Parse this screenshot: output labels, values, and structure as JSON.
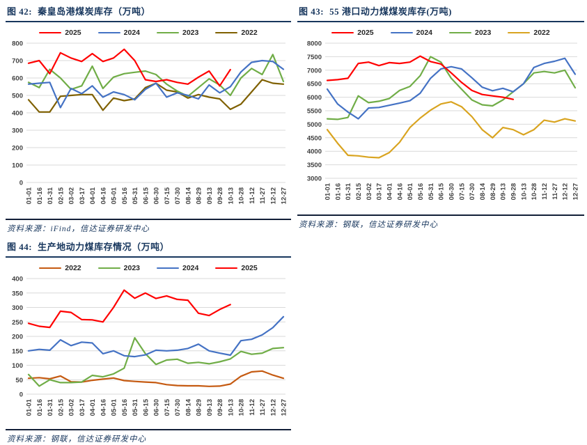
{
  "chart_data": [
    {
      "type": "line",
      "figure_label": "图 42:",
      "title": "秦皇岛港煤炭库存（万吨）",
      "source": "资料来源：iFind，信达证券研发中心",
      "legend_position": "top",
      "grid": true,
      "grid_color": "#D9D9D9",
      "ylim": [
        0,
        800
      ],
      "ytick_step": 100,
      "categories": [
        "01-01",
        "01-16",
        "01-31",
        "02-15",
        "03-02",
        "03-17",
        "04-01",
        "04-16",
        "05-01",
        "05-16",
        "05-31",
        "06-15",
        "06-30",
        "07-15",
        "07-30",
        "08-14",
        "08-29",
        "09-13",
        "09-28",
        "10-13",
        "10-28",
        "11-12",
        "11-27",
        "12-12",
        "12-27"
      ],
      "series": [
        {
          "name": "2025",
          "color": "#FF0000",
          "values": [
            685,
            700,
            625,
            745,
            715,
            695,
            740,
            695,
            715,
            765,
            700,
            590,
            580,
            590,
            575,
            565,
            605,
            640,
            555,
            648,
            null,
            null,
            null,
            null,
            null
          ]
        },
        {
          "name": "2024",
          "color": "#4472C4",
          "values": [
            565,
            570,
            575,
            430,
            540,
            510,
            555,
            490,
            520,
            505,
            475,
            535,
            570,
            490,
            515,
            500,
            480,
            560,
            515,
            550,
            635,
            690,
            700,
            695,
            650
          ]
        },
        {
          "name": "2023",
          "color": "#70AD47",
          "values": [
            575,
            545,
            650,
            600,
            535,
            555,
            668,
            540,
            605,
            625,
            633,
            640,
            620,
            565,
            525,
            495,
            545,
            595,
            560,
            500,
            600,
            655,
            620,
            735,
            580
          ]
        },
        {
          "name": "2022",
          "color": "#7F6000",
          "values": [
            475,
            405,
            405,
            495,
            500,
            505,
            505,
            415,
            485,
            470,
            480,
            545,
            570,
            530,
            520,
            485,
            505,
            490,
            480,
            420,
            450,
            520,
            590,
            570,
            565
          ]
        }
      ]
    },
    {
      "type": "line",
      "figure_label": "图 43:",
      "title": "55 港口动力煤煤炭库存(万吨)",
      "source": "资料来源：钢联，信达证券研发中心",
      "legend_position": "top",
      "grid": true,
      "grid_color": "#D9D9D9",
      "ylim": [
        3000,
        8000
      ],
      "ytick_step": 500,
      "categories": [
        "01-01",
        "01-16",
        "01-31",
        "02-15",
        "03-02",
        "03-17",
        "04-01",
        "04-16",
        "05-01",
        "05-16",
        "05-31",
        "06-15",
        "06-30",
        "07-15",
        "07-30",
        "08-14",
        "08-29",
        "09-13",
        "09-28",
        "10-13",
        "10-28",
        "11-12",
        "11-27",
        "12-12",
        "12-27"
      ],
      "series": [
        {
          "name": "2025",
          "color": "#FF0000",
          "values": [
            6620,
            6650,
            6700,
            7250,
            7300,
            7170,
            7280,
            7250,
            7300,
            7520,
            7320,
            7230,
            6900,
            6550,
            6250,
            6100,
            6050,
            6000,
            5920,
            null,
            null,
            null,
            null,
            null,
            null
          ]
        },
        {
          "name": "2024",
          "color": "#4472C4",
          "values": [
            6300,
            5750,
            5450,
            5200,
            5600,
            5620,
            5700,
            5780,
            5870,
            6150,
            6700,
            7050,
            7130,
            7050,
            6720,
            6370,
            6240,
            6330,
            6200,
            6500,
            7100,
            7250,
            7330,
            7440,
            6850
          ]
        },
        {
          "name": "2023",
          "color": "#70AD47",
          "values": [
            5200,
            5180,
            5250,
            6050,
            5800,
            5850,
            5950,
            6250,
            6400,
            6800,
            7500,
            7300,
            6700,
            6300,
            5900,
            5720,
            5680,
            5900,
            6200,
            6500,
            6900,
            6950,
            6900,
            7000,
            6350
          ]
        },
        {
          "name": "2022",
          "color": "#D9A420",
          "values": [
            4800,
            4300,
            3850,
            3830,
            3780,
            3760,
            3950,
            4330,
            4880,
            5230,
            5520,
            5750,
            5830,
            5650,
            5280,
            4800,
            4500,
            4880,
            4800,
            4610,
            4800,
            5150,
            5080,
            5200,
            5120
          ]
        }
      ]
    },
    {
      "type": "line",
      "figure_label": "图 44:",
      "title": "生产地动力煤库存情况（万吨）",
      "source": "资料来源：钢联，信达证券研发中心",
      "legend_position": "top",
      "grid": true,
      "grid_color": "#D9D9D9",
      "ylim": [
        0,
        400
      ],
      "ytick_step": 50,
      "categories": [
        "01-01",
        "01-16",
        "01-31",
        "02-15",
        "03-02",
        "03-17",
        "04-01",
        "04-16",
        "05-01",
        "05-16",
        "05-31",
        "06-15",
        "06-30",
        "07-15",
        "07-30",
        "08-14",
        "08-29",
        "09-13",
        "09-28",
        "10-13",
        "10-28",
        "11-12",
        "11-27",
        "12-12",
        "12-27"
      ],
      "series": [
        {
          "name": "2022",
          "color": "#C55A11",
          "values": [
            55,
            57,
            53,
            63,
            43,
            42,
            48,
            52,
            56,
            47,
            44,
            42,
            40,
            33,
            30,
            29,
            29,
            27,
            28,
            35,
            62,
            77,
            80,
            66,
            55
          ]
        },
        {
          "name": "2023",
          "color": "#70AD47",
          "values": [
            68,
            28,
            50,
            40,
            40,
            42,
            65,
            60,
            70,
            90,
            195,
            140,
            103,
            118,
            121,
            107,
            110,
            105,
            112,
            122,
            148,
            138,
            142,
            158,
            161
          ]
        },
        {
          "name": "2024",
          "color": "#4472C4",
          "values": [
            150,
            155,
            152,
            188,
            168,
            180,
            177,
            140,
            150,
            133,
            130,
            136,
            152,
            150,
            152,
            158,
            173,
            150,
            142,
            135,
            185,
            190,
            205,
            230,
            268
          ]
        },
        {
          "name": "2025",
          "color": "#FF0000",
          "values": [
            245,
            235,
            231,
            287,
            283,
            258,
            257,
            250,
            300,
            360,
            332,
            350,
            331,
            340,
            328,
            325,
            280,
            272,
            293,
            310,
            null,
            null,
            null,
            null,
            null
          ]
        }
      ]
    }
  ]
}
